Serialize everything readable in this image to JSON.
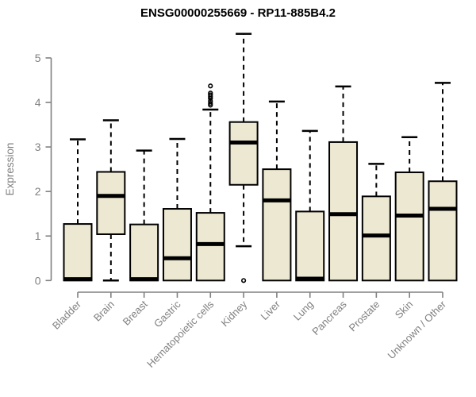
{
  "figure": {
    "title": "ENSG00000255669 - RP11-885B4.2",
    "ylabel": "Expression"
  },
  "colors": {
    "box_fill": "#EDE8D1",
    "box_border": "#000000",
    "median": "#000000",
    "whisker": "#000000",
    "axis": "#808080",
    "label_gray": "#808080",
    "title": "#000000",
    "background": "#ffffff"
  },
  "chart_data": {
    "type": "boxplot",
    "title": "ENSG00000255669 - RP11-885B4.2",
    "xlabel": "",
    "ylabel": "Expression",
    "ylim": [
      0,
      5.6
    ],
    "yticks": [
      0,
      1,
      2,
      3,
      4,
      5
    ],
    "grid": false,
    "legend": false,
    "categories": [
      "Bladder",
      "Brain",
      "Breast",
      "Gastric",
      "Hematopoietic cells",
      "Kidney",
      "Liver",
      "Lung",
      "Pancreas",
      "Prostate",
      "Skin",
      "Unknown / Other"
    ],
    "boxes": [
      {
        "category": "Bladder",
        "whisker_low": 0,
        "q1": 0,
        "median": 0.03,
        "q3": 1.27,
        "whisker_high": 3.17,
        "outliers": []
      },
      {
        "category": "Brain",
        "whisker_low": 0,
        "q1": 1.04,
        "median": 1.9,
        "q3": 2.44,
        "whisker_high": 3.6,
        "outliers": []
      },
      {
        "category": "Breast",
        "whisker_low": 0,
        "q1": 0,
        "median": 0.03,
        "q3": 1.26,
        "whisker_high": 2.92,
        "outliers": []
      },
      {
        "category": "Gastric",
        "whisker_low": 0,
        "q1": 0,
        "median": 0.5,
        "q3": 1.61,
        "whisker_high": 3.18,
        "outliers": []
      },
      {
        "category": "Hematopoietic cells",
        "whisker_low": 0,
        "q1": 0,
        "median": 0.82,
        "q3": 1.52,
        "whisker_high": 3.84,
        "outliers": [
          4.37,
          4.21,
          4.17,
          4.13,
          4.09,
          4.03,
          3.98,
          3.94
        ]
      },
      {
        "category": "Kidney",
        "whisker_low": 0.77,
        "q1": 2.15,
        "median": 3.1,
        "q3": 3.56,
        "whisker_high": 5.54,
        "outliers": [
          0.0
        ]
      },
      {
        "category": "Liver",
        "whisker_low": 0,
        "q1": 0,
        "median": 1.8,
        "q3": 2.5,
        "whisker_high": 4.02,
        "outliers": []
      },
      {
        "category": "Lung",
        "whisker_low": 0,
        "q1": 0,
        "median": 0.04,
        "q3": 1.55,
        "whisker_high": 3.36,
        "outliers": []
      },
      {
        "category": "Pancreas",
        "whisker_low": 0,
        "q1": 0,
        "median": 1.49,
        "q3": 3.11,
        "whisker_high": 4.36,
        "outliers": []
      },
      {
        "category": "Prostate",
        "whisker_low": 0,
        "q1": 0,
        "median": 1.01,
        "q3": 1.89,
        "whisker_high": 2.62,
        "outliers": []
      },
      {
        "category": "Skin",
        "whisker_low": 0,
        "q1": 0,
        "median": 1.46,
        "q3": 2.43,
        "whisker_high": 3.22,
        "outliers": []
      },
      {
        "category": "Unknown / Other",
        "whisker_low": 0,
        "q1": 0,
        "median": 1.61,
        "q3": 2.23,
        "whisker_high": 4.44,
        "outliers": []
      }
    ]
  }
}
